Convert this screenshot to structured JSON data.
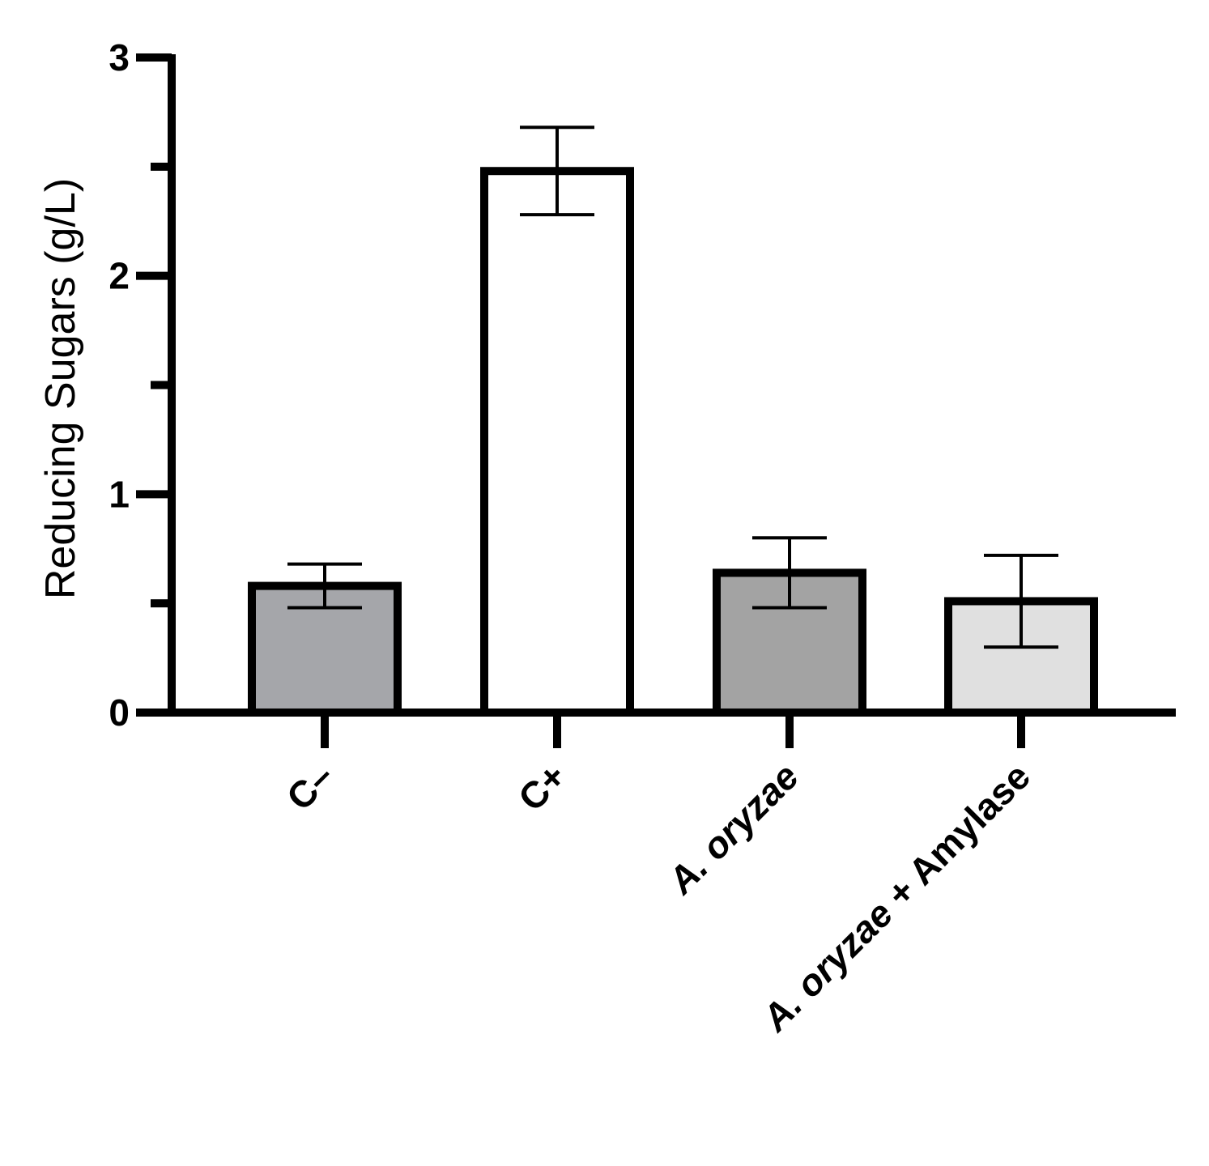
{
  "chart_data": {
    "type": "bar",
    "title": "",
    "xlabel": "",
    "ylabel": "Reducing Sugars (g/L)",
    "ylim": [
      0,
      3
    ],
    "yticks": [
      0,
      1,
      2,
      3
    ],
    "yticks_minor": [
      0.5,
      1.5,
      2.5
    ],
    "grid": false,
    "legend": "none",
    "categories": [
      "C–",
      "C+",
      "A. oryzae",
      "A. oryzae + Amylase"
    ],
    "category_italic_prefix": [
      "",
      "",
      "A. oryzae",
      "A. oryzae"
    ],
    "values": [
      0.58,
      2.48,
      0.64,
      0.51
    ],
    "error": [
      0.1,
      0.2,
      0.16,
      0.21
    ],
    "colors": [
      "#a5a6aa",
      "#ffffff",
      "#a3a3a3",
      "#e0e0e0"
    ]
  }
}
